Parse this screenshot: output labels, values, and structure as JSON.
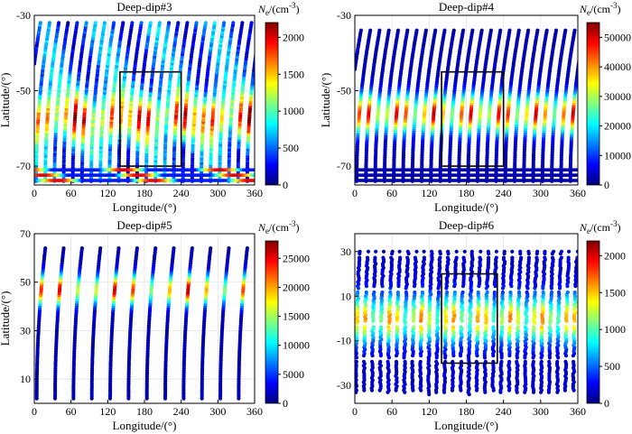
{
  "figure": {
    "kind": "4-panel electron density scatter map"
  },
  "colormap": [
    "#00007f",
    "#0000ff",
    "#007fff",
    "#00ffff",
    "#7fff7f",
    "#ffff00",
    "#ff7f00",
    "#ff0000",
    "#7f0000"
  ],
  "chart_data": [
    {
      "type": "scatter",
      "title": "Deep-dip#3",
      "xlabel": "Longitude/(°)",
      "ylabel": "Latitude/(°)",
      "xlim": [
        0,
        360
      ],
      "ylim": [
        -75,
        -30
      ],
      "xticks": [
        0,
        60,
        120,
        180,
        240,
        300,
        360
      ],
      "xtick_labels": [
        "0",
        "60",
        "120",
        "180",
        "240",
        "300",
        "360"
      ],
      "yticks": [
        -30,
        -50,
        -70
      ],
      "ytick_labels": [
        "-30",
        "-50",
        "-70"
      ],
      "grid": true,
      "colorbar": {
        "label_symbol": "N",
        "label_sub": "e",
        "label_unit": "/(cm",
        "label_exp": "-3",
        "label_close": ")",
        "range": [
          0,
          2200
        ],
        "ticks": [
          0,
          500,
          1000,
          1500,
          2000
        ],
        "tick_labels": [
          "0",
          "500",
          "1000",
          "1500",
          "2000"
        ]
      },
      "box": {
        "lon": [
          140,
          240
        ],
        "lat": [
          -70,
          -45
        ]
      },
      "tracks": {
        "count": 24,
        "lon_start": 3,
        "spacing": 15,
        "lat_start": -74,
        "lat_end": -32,
        "lon_drift": 22,
        "peak_lat": -57,
        "peak_width": 6,
        "peak_value": 2100,
        "base_value": 550
      }
    },
    {
      "type": "scatter",
      "title": "Deep-dip#4",
      "xlabel": "Longitude/(°)",
      "ylabel": "Latitude/(°)",
      "xlim": [
        0,
        360
      ],
      "ylim": [
        -75,
        -30
      ],
      "xticks": [
        0,
        60,
        120,
        180,
        240,
        300,
        360
      ],
      "xtick_labels": [
        "0",
        "60",
        "120",
        "180",
        "240",
        "300",
        "360"
      ],
      "yticks": [
        -30,
        -50,
        -70
      ],
      "ytick_labels": [
        "-30",
        "-50",
        "-70"
      ],
      "grid": true,
      "colorbar": {
        "label_symbol": "N",
        "label_sub": "e",
        "label_unit": "/(cm",
        "label_exp": "-3",
        "label_close": ")",
        "range": [
          0,
          55000
        ],
        "ticks": [
          0,
          10000,
          20000,
          30000,
          40000,
          50000
        ],
        "tick_labels": [
          "0",
          "10000",
          "20000",
          "30000",
          "40000",
          "50000"
        ]
      },
      "box": {
        "lon": [
          140,
          240
        ],
        "lat": [
          -70,
          -45
        ]
      },
      "tracks": {
        "count": 24,
        "lon_start": 3,
        "spacing": 15,
        "lat_start": -74,
        "lat_end": -34,
        "lon_drift": 22,
        "peak_lat": -56,
        "peak_width": 5,
        "peak_value": 52000,
        "base_value": 3000
      }
    },
    {
      "type": "scatter",
      "title": "Deep-dip#5",
      "xlabel": "Longitude/(°)",
      "ylabel": "Latitude/(°)",
      "xlim": [
        0,
        360
      ],
      "ylim": [
        0,
        70
      ],
      "xticks": [
        0,
        60,
        120,
        180,
        240,
        300,
        360
      ],
      "xtick_labels": [
        "0",
        "60",
        "120",
        "180",
        "240",
        "300",
        "360"
      ],
      "yticks": [
        10,
        30,
        50,
        70
      ],
      "ytick_labels": [
        "10",
        "30",
        "50",
        "70"
      ],
      "grid": true,
      "colorbar": {
        "label_symbol": "N",
        "label_sub": "e",
        "label_unit": "/(cm",
        "label_exp": "-3",
        "label_close": ")",
        "range": [
          0,
          28000
        ],
        "ticks": [
          0,
          5000,
          10000,
          15000,
          20000,
          25000
        ],
        "tick_labels": [
          "0",
          "5000",
          "10000",
          "15000",
          "20000",
          "25000"
        ]
      },
      "box": null,
      "tracks": {
        "count": 12,
        "lon_start": 4,
        "spacing": 30,
        "lat_start": 2,
        "lat_end": 64,
        "lon_drift": 14,
        "peak_lat": 47,
        "peak_width": 6,
        "peak_value": 27000,
        "base_value": 1500
      }
    },
    {
      "type": "scatter",
      "title": "Deep-dip#6",
      "xlabel": "Longitude/(°)",
      "ylabel": "",
      "xlim": [
        0,
        360
      ],
      "ylim": [
        -38,
        38
      ],
      "xticks": [
        0,
        60,
        120,
        180,
        240,
        300,
        360
      ],
      "xtick_labels": [
        "0",
        "60",
        "120",
        "180",
        "240",
        "300",
        "360"
      ],
      "yticks": [
        30,
        10,
        -10,
        -30
      ],
      "ytick_labels": [
        "30",
        "10",
        "-10",
        "-30"
      ],
      "grid": true,
      "colorbar": {
        "label_symbol": "N",
        "label_sub": "e",
        "label_unit": "/(cm",
        "label_exp": "-3",
        "label_close": ")",
        "range": [
          0,
          2200
        ],
        "ticks": [
          0,
          500,
          1000,
          1500,
          2000
        ],
        "tick_labels": [
          "0",
          "500",
          "1000",
          "1500",
          "2000"
        ]
      },
      "box": {
        "lon": [
          140,
          230
        ],
        "lat": [
          -20,
          20
        ]
      },
      "tracks": {
        "count": 28,
        "lon_start": 2,
        "spacing": 13,
        "lat_start": -34,
        "lat_end": 30,
        "lon_drift": 6,
        "peak_lat": 0,
        "peak_width": 10,
        "peak_value": 1700,
        "base_value": 200
      }
    }
  ]
}
